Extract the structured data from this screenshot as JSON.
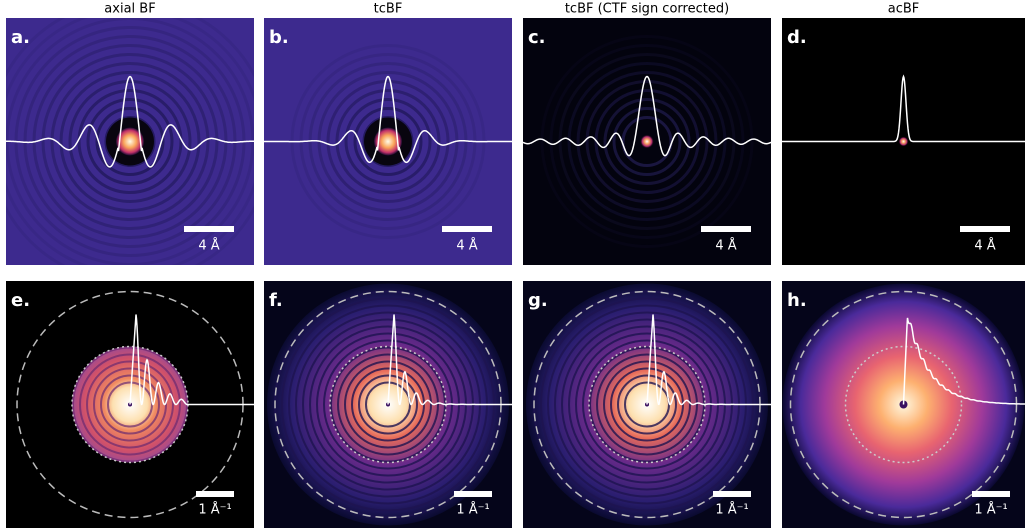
{
  "columns": [
    "axial BF",
    "tcBF",
    "tcBF (CTF sign corrected)",
    "acBF"
  ],
  "panels": [
    {
      "label": "a.",
      "scale_bar": "4 Å"
    },
    {
      "label": "b.",
      "scale_bar": "4 Å"
    },
    {
      "label": "c.",
      "scale_bar": "4 Å"
    },
    {
      "label": "d.",
      "scale_bar": "4 Å"
    },
    {
      "label": "e.",
      "scale_bar": "1 Å⁻¹"
    },
    {
      "label": "f.",
      "scale_bar": "1 Å⁻¹"
    },
    {
      "label": "g.",
      "scale_bar": "1 Å⁻¹"
    },
    {
      "label": "h.",
      "scale_bar": "1 Å⁻¹"
    }
  ]
}
